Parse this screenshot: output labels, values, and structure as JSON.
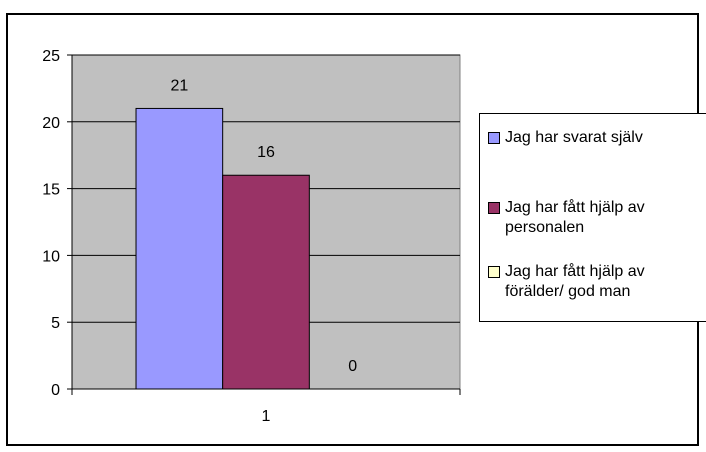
{
  "chart_data": {
    "type": "bar",
    "categories": [
      "1"
    ],
    "ylim": [
      0,
      25
    ],
    "yticks": [
      0,
      5,
      10,
      15,
      20,
      25
    ],
    "grid": true,
    "legend_position": "right",
    "plot_background": "#c0c0c0",
    "series": [
      {
        "name": "Jag har svarat själv",
        "values": [
          21
        ],
        "color": "#9999ff"
      },
      {
        "name": "Jag har fått hjälp av personalen",
        "values": [
          16
        ],
        "color": "#993366"
      },
      {
        "name": "Jag har fått hjälp av förälder/ god man",
        "values": [
          0
        ],
        "color": "#ffffcc"
      }
    ]
  }
}
